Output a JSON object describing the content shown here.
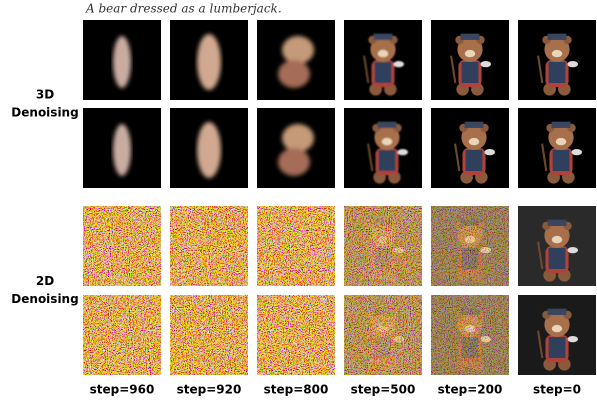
{
  "caption": "A bear dressed as a lumberjack.",
  "sections": [
    {
      "label": [
        "3D",
        "Denoising"
      ]
    },
    {
      "label": [
        "2D",
        "Denoising"
      ]
    }
  ],
  "columns": [
    "step=960",
    "step=920",
    "step=800",
    "step=500",
    "step=200",
    "step=0"
  ]
}
